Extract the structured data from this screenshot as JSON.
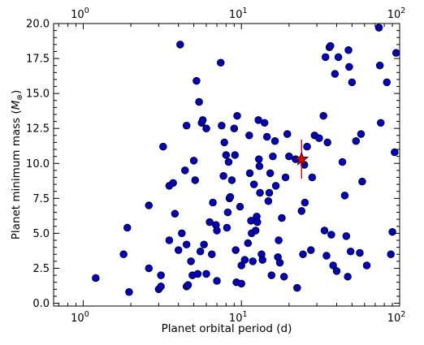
{
  "chart_data": {
    "type": "scatter",
    "title": "",
    "xlabel": "Planet orbital period (d)",
    "ylabel_prefix": "Planet minimum mass (",
    "ylabel_symbol": "M",
    "ylabel_subscript": "⊕",
    "ylabel_suffix": ")",
    "xscale": "log",
    "xlim": [
      0.65,
      100
    ],
    "ylim": [
      -0.2,
      20
    ],
    "x_ticks": [
      {
        "value": 1,
        "base": "10",
        "exp": "0"
      },
      {
        "value": 10,
        "base": "10",
        "exp": "1"
      },
      {
        "value": 100,
        "base": "10",
        "exp": "2"
      }
    ],
    "y_ticks": [
      {
        "value": 0,
        "label": "0.0"
      },
      {
        "value": 2.5,
        "label": "2.5"
      },
      {
        "value": 5,
        "label": "5.0"
      },
      {
        "value": 7.5,
        "label": "7.5"
      },
      {
        "value": 10,
        "label": "10.0"
      },
      {
        "value": 12.5,
        "label": "12.5"
      },
      {
        "value": 15,
        "label": "15.0"
      },
      {
        "value": 17.5,
        "label": "17.5"
      },
      {
        "value": 20,
        "label": "20.0"
      }
    ],
    "top_axis_labels": true,
    "grid": false,
    "colors": {
      "points": "#0000cc",
      "point_edge": "#000000",
      "highlight": "#dd0000"
    },
    "points": [
      [
        1.2,
        1.8
      ],
      [
        1.8,
        3.5
      ],
      [
        1.9,
        5.4
      ],
      [
        1.95,
        0.8
      ],
      [
        2.6,
        7.0
      ],
      [
        2.6,
        2.5
      ],
      [
        3.0,
        1.0
      ],
      [
        3.1,
        1.2
      ],
      [
        3.1,
        2.0
      ],
      [
        3.2,
        11.2
      ],
      [
        3.5,
        4.5
      ],
      [
        3.5,
        8.4
      ],
      [
        3.7,
        8.6
      ],
      [
        3.8,
        6.4
      ],
      [
        4.0,
        3.8
      ],
      [
        4.1,
        18.5
      ],
      [
        4.2,
        5.0
      ],
      [
        4.4,
        9.5
      ],
      [
        4.5,
        1.2
      ],
      [
        4.5,
        4.2
      ],
      [
        4.5,
        12.7
      ],
      [
        4.6,
        1.3
      ],
      [
        4.8,
        3.0
      ],
      [
        4.9,
        2.0
      ],
      [
        5.0,
        10.2
      ],
      [
        5.1,
        8.8
      ],
      [
        5.2,
        15.9
      ],
      [
        5.3,
        2.1
      ],
      [
        5.4,
        14.4
      ],
      [
        5.5,
        3.7
      ],
      [
        5.6,
        12.9
      ],
      [
        5.7,
        13.1
      ],
      [
        5.8,
        4.2
      ],
      [
        6.0,
        12.5
      ],
      [
        6.0,
        2.1
      ],
      [
        6.3,
        5.8
      ],
      [
        6.5,
        3.5
      ],
      [
        6.6,
        7.2
      ],
      [
        6.9,
        5.6
      ],
      [
        7.0,
        5.2
      ],
      [
        7.0,
        1.6
      ],
      [
        7.4,
        17.2
      ],
      [
        7.5,
        12.7
      ],
      [
        7.7,
        9.1
      ],
      [
        7.8,
        11.5
      ],
      [
        8.0,
        10.6
      ],
      [
        8.1,
        5.4
      ],
      [
        8.2,
        6.5
      ],
      [
        8.3,
        10.1
      ],
      [
        8.4,
        7.5
      ],
      [
        8.5,
        7.6
      ],
      [
        8.7,
        8.8
      ],
      [
        9.0,
        12.5
      ],
      [
        9.1,
        10.6
      ],
      [
        9.2,
        3.8
      ],
      [
        9.3,
        1.5
      ],
      [
        9.4,
        13.4
      ],
      [
        9.8,
        6.9
      ],
      [
        10.0,
        2.7
      ],
      [
        10.0,
        1.4
      ],
      [
        10.5,
        3.1
      ],
      [
        11.0,
        4.3
      ],
      [
        11.2,
        12.0
      ],
      [
        11.3,
        9.3
      ],
      [
        11.5,
        5.9
      ],
      [
        11.6,
        5.0
      ],
      [
        11.8,
        3.0
      ],
      [
        12.0,
        8.5
      ],
      [
        12.3,
        5.2
      ],
      [
        12.5,
        6.2
      ],
      [
        12.6,
        5.8
      ],
      [
        12.8,
        13.1
      ],
      [
        12.9,
        10.3
      ],
      [
        13.0,
        9.8
      ],
      [
        13.1,
        7.9
      ],
      [
        13.4,
        3.5
      ],
      [
        13.6,
        3.1
      ],
      [
        14.0,
        12.9
      ],
      [
        14.5,
        11.9
      ],
      [
        14.8,
        7.3
      ],
      [
        15.0,
        7.9
      ],
      [
        15.2,
        9.3
      ],
      [
        15.5,
        2.0
      ],
      [
        15.8,
        10.5
      ],
      [
        16.3,
        11.6
      ],
      [
        16.5,
        8.4
      ],
      [
        17.0,
        3.3
      ],
      [
        17.2,
        4.5
      ],
      [
        17.5,
        2.9
      ],
      [
        18.0,
        6.1
      ],
      [
        18.6,
        1.9
      ],
      [
        19.0,
        9.0
      ],
      [
        19.5,
        12.1
      ],
      [
        20.0,
        10.5
      ],
      [
        22.0,
        10.3
      ],
      [
        22.5,
        1.1
      ],
      [
        24.0,
        6.6
      ],
      [
        24.5,
        3.5
      ],
      [
        25.0,
        9.9
      ],
      [
        25.2,
        7.2
      ],
      [
        26.0,
        11.2
      ],
      [
        27.5,
        3.8
      ],
      [
        28.0,
        9.0
      ],
      [
        29.0,
        12.0
      ],
      [
        31.0,
        11.8
      ],
      [
        33.0,
        13.4
      ],
      [
        33.5,
        5.2
      ],
      [
        34.0,
        17.6
      ],
      [
        34.5,
        3.4
      ],
      [
        35.0,
        11.5
      ],
      [
        36.0,
        18.3
      ],
      [
        36.5,
        18.4
      ],
      [
        37.0,
        4.9
      ],
      [
        38.0,
        2.7
      ],
      [
        39.0,
        16.4
      ],
      [
        40.0,
        2.3
      ],
      [
        41.0,
        17.6
      ],
      [
        43.5,
        10.1
      ],
      [
        45.0,
        7.7
      ],
      [
        46.0,
        4.8
      ],
      [
        47.0,
        1.9
      ],
      [
        47.5,
        18.1
      ],
      [
        48.0,
        16.9
      ],
      [
        49.0,
        3.7
      ],
      [
        50.0,
        15.8
      ],
      [
        53.0,
        11.6
      ],
      [
        56.0,
        3.6
      ],
      [
        57.0,
        12.1
      ],
      [
        58.0,
        8.7
      ],
      [
        62.0,
        2.7
      ],
      [
        74.0,
        19.7
      ],
      [
        75.0,
        17.0
      ],
      [
        76.0,
        12.9
      ],
      [
        83.0,
        15.8
      ],
      [
        88.0,
        3.5
      ],
      [
        90.0,
        5.1
      ],
      [
        93.0,
        10.8
      ],
      [
        95.0,
        17.9
      ]
    ],
    "highlight": {
      "x": 24.0,
      "y": 10.3,
      "yerr": 1.4,
      "marker": "star"
    }
  }
}
